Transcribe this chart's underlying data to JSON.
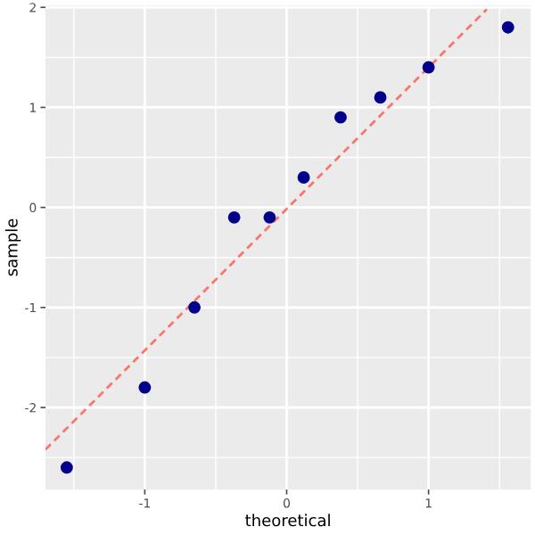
{
  "chart_data": {
    "type": "scatter",
    "xlabel": "theoretical",
    "ylabel": "sample",
    "x": [
      -1.55,
      -1.0,
      -0.65,
      -0.37,
      -0.12,
      0.12,
      0.38,
      0.66,
      1.0,
      1.56
    ],
    "series": [
      {
        "color": "#00008b",
        "values": [
          -2.6,
          -1.8,
          -1.0,
          -0.1,
          -0.1,
          0.3,
          0.9,
          1.1,
          1.4,
          1.8
        ]
      },
      {
        "type": "line",
        "color": "#f8766d",
        "line_style": "dashed",
        "marker": "none",
        "x": [
          -1.7,
          1.41
        ],
        "values": [
          -2.42,
          1.98
        ]
      }
    ],
    "marker": "circle",
    "xlim": [
      -1.7,
      1.72
    ],
    "ylim": [
      -2.82,
      2.02
    ],
    "xticks": [
      -1,
      0,
      1
    ],
    "yticks": [
      -2,
      -1,
      0,
      1,
      2
    ],
    "grid": true
  }
}
